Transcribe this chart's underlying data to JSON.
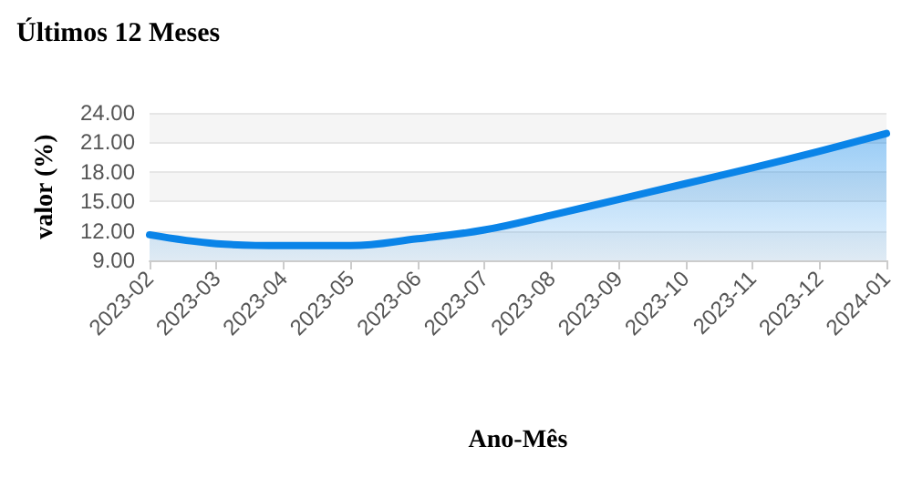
{
  "chart_data": {
    "type": "area",
    "title": "Últimos 12 Meses",
    "xlabel": "Ano-Mês",
    "ylabel": "valor (%)",
    "categories": [
      "2023-02",
      "2023-03",
      "2023-04",
      "2023-05",
      "2023-06",
      "2023-07",
      "2023-08",
      "2023-09",
      "2023-10",
      "2023-11",
      "2023-12",
      "2024-01"
    ],
    "series": [
      {
        "color": "#0a84e8",
        "values": [
          11.6,
          10.7,
          10.5,
          10.5,
          11.2,
          12.1,
          13.6,
          15.2,
          16.8,
          18.4,
          20.1,
          21.9
        ]
      }
    ],
    "ylim": [
      9,
      24
    ],
    "yticks": [
      {
        "value": 9,
        "label": "9.00"
      },
      {
        "value": 12,
        "label": "12.00"
      },
      {
        "value": 15,
        "label": "15.00"
      },
      {
        "value": 18,
        "label": "18.00"
      },
      {
        "value": 21,
        "label": "21.00"
      },
      {
        "value": 24,
        "label": "24.00"
      }
    ],
    "grid": "y",
    "marker": "none",
    "line_style": "solid"
  }
}
